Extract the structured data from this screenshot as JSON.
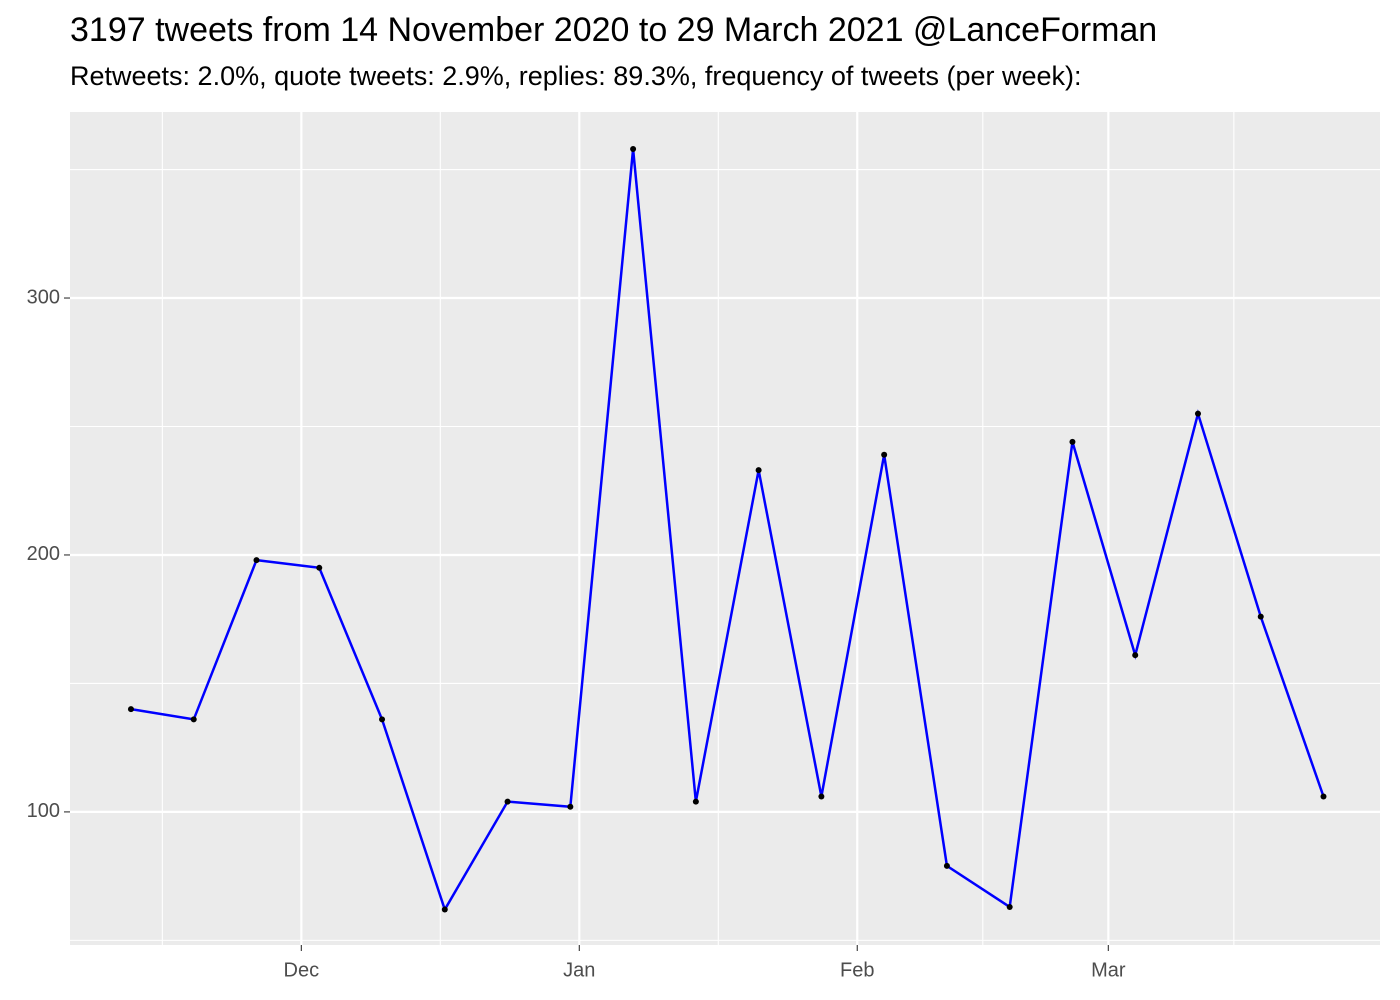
{
  "chart_data": {
    "type": "line",
    "title": "3197 tweets from 14 November 2020 to 29 March 2021 @LanceForman",
    "subtitle": "Retweets: 2.0%, quote tweets: 2.9%, replies: 89.3%, frequency of tweets (per week):",
    "x": [
      11,
      18,
      25,
      32,
      39,
      46,
      53,
      60,
      67,
      74,
      81,
      88,
      95,
      102,
      109,
      116,
      123,
      130,
      137,
      144
    ],
    "xlim": [
      4.2,
      150.3
    ],
    "xticks": [
      {
        "value": 30,
        "label": "Dec"
      },
      {
        "value": 61,
        "label": "Jan"
      },
      {
        "value": 92,
        "label": "Feb"
      },
      {
        "value": 120,
        "label": "Mar"
      }
    ],
    "ylim": [
      48.2,
      372.4
    ],
    "yticks": [
      100,
      200,
      300
    ],
    "grid": true,
    "marker_color": "black",
    "series": [
      {
        "color": "blue",
        "values": [
          140,
          136,
          198,
          195,
          136,
          62,
          104,
          102,
          358,
          104,
          233,
          106,
          239,
          79,
          63,
          244,
          161,
          255,
          176,
          106
        ]
      }
    ]
  }
}
